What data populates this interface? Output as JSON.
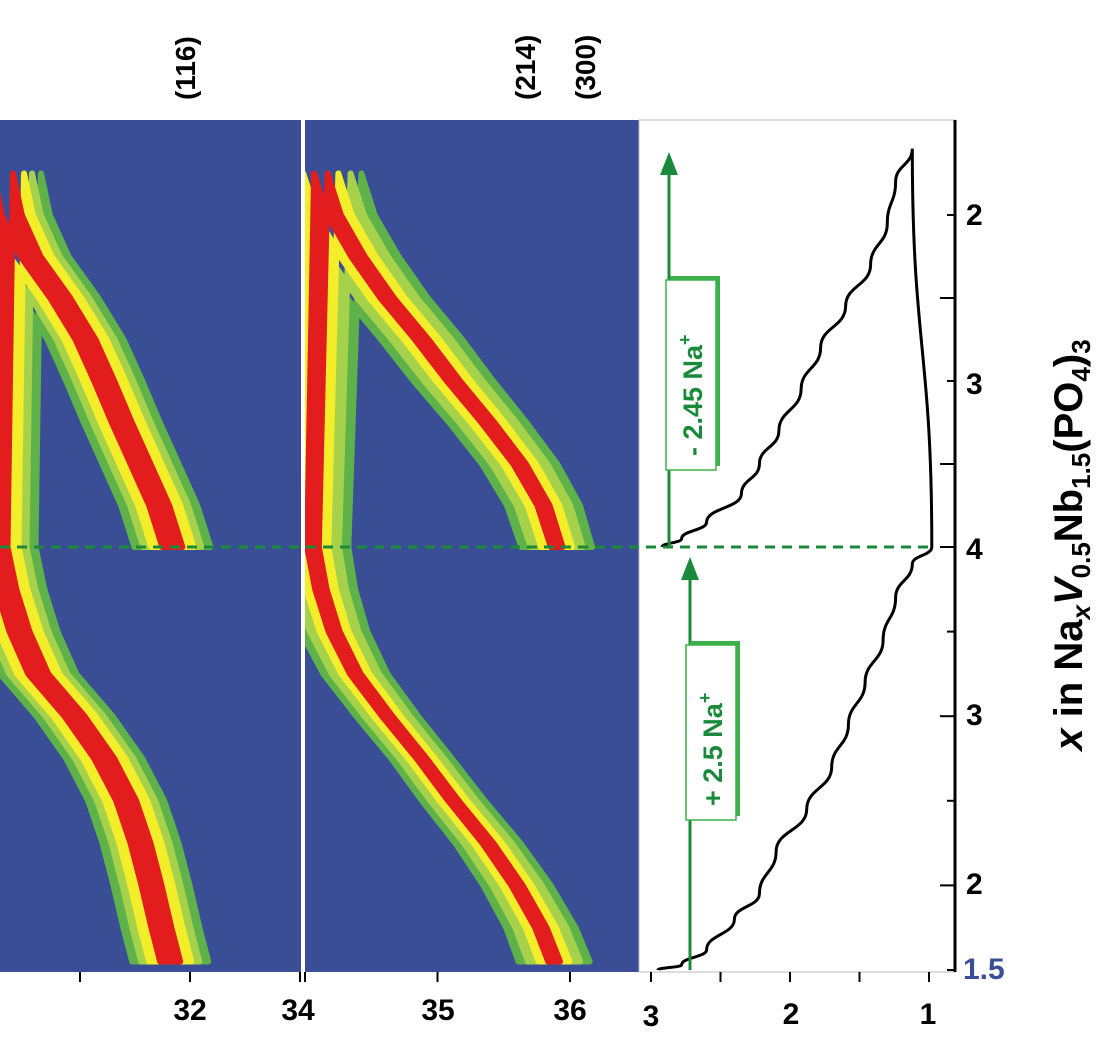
{
  "chart_data": [
    {
      "panel": "xrd-contour-left",
      "type": "heatmap",
      "x_ticks": [
        "32",
        "34"
      ],
      "peak_labels": [
        "(116)"
      ],
      "colors": {
        "background": "#3a4e96",
        "low": "#5fb24a",
        "mid": "#a6d24b",
        "high": "#f4ee2a",
        "max": "#e31d1d"
      },
      "peak_track": {
        "y": [
          1.5,
          1.75,
          2.0,
          2.25,
          2.5,
          2.75,
          3.0,
          3.25,
          3.5,
          3.75,
          4.0,
          3.75,
          3.5,
          3.25,
          3.0,
          2.75,
          2.5,
          2.25,
          2.0,
          1.75,
          1.55
        ],
        "branch": [
          "charge",
          "charge",
          "charge",
          "charge",
          "charge",
          "charge",
          "charge",
          "charge",
          "charge",
          "charge",
          "turn",
          "discharge",
          "discharge",
          "discharge",
          "discharge",
          "discharge",
          "discharge",
          "discharge",
          "discharge",
          "discharge",
          "discharge"
        ],
        "two_theta": [
          31.84,
          31.72,
          31.55,
          31.38,
          31.22,
          31.05,
          30.82,
          30.55,
          30.38,
          30.3,
          30.25,
          30.33,
          30.45,
          30.62,
          30.95,
          31.22,
          31.42,
          31.55,
          31.65,
          31.74,
          31.82
        ]
      }
    },
    {
      "panel": "xrd-contour-right",
      "type": "heatmap",
      "x_ticks": [
        "34",
        "35",
        "36"
      ],
      "peak_labels": [
        "(214)",
        "(300)"
      ],
      "peak_track": {
        "two_theta": [
          35.9,
          35.8,
          35.62,
          35.38,
          35.12,
          34.88,
          34.62,
          34.4,
          34.22,
          34.12,
          34.06,
          34.12,
          34.22,
          34.38,
          34.62,
          34.88,
          35.12,
          35.38,
          35.6,
          35.78,
          35.88
        ]
      }
    },
    {
      "panel": "voltage-profile",
      "type": "line",
      "x_ticks": [
        "3",
        "2",
        "1"
      ],
      "xlim": [
        3.0,
        0.95
      ],
      "points": [
        {
          "v": 2.92,
          "y": 1.5,
          "branch": "charge"
        },
        {
          "v": 2.78,
          "y": 1.55,
          "branch": "charge"
        },
        {
          "v": 2.6,
          "y": 1.65,
          "branch": "charge"
        },
        {
          "v": 2.35,
          "y": 1.82,
          "branch": "charge"
        },
        {
          "v": 2.22,
          "y": 2.0,
          "branch": "charge"
        },
        {
          "v": 2.08,
          "y": 2.2,
          "branch": "charge"
        },
        {
          "v": 1.92,
          "y": 2.45,
          "branch": "charge"
        },
        {
          "v": 1.78,
          "y": 2.7,
          "branch": "charge"
        },
        {
          "v": 1.6,
          "y": 2.95,
          "branch": "charge"
        },
        {
          "v": 1.42,
          "y": 3.2,
          "branch": "charge"
        },
        {
          "v": 1.3,
          "y": 3.45,
          "branch": "charge"
        },
        {
          "v": 1.24,
          "y": 3.7,
          "branch": "charge"
        },
        {
          "v": 1.12,
          "y": 3.9,
          "branch": "charge"
        },
        {
          "v": 0.98,
          "y": 4.0,
          "branch": "turn"
        },
        {
          "v": 1.12,
          "y": 3.9,
          "branch": "discharge"
        },
        {
          "v": 1.24,
          "y": 3.7,
          "branch": "discharge"
        },
        {
          "v": 1.33,
          "y": 3.45,
          "branch": "discharge"
        },
        {
          "v": 1.46,
          "y": 3.2,
          "branch": "discharge"
        },
        {
          "v": 1.58,
          "y": 2.95,
          "branch": "discharge"
        },
        {
          "v": 1.7,
          "y": 2.7,
          "branch": "discharge"
        },
        {
          "v": 1.88,
          "y": 2.45,
          "branch": "discharge"
        },
        {
          "v": 2.1,
          "y": 2.2,
          "branch": "discharge"
        },
        {
          "v": 2.22,
          "y": 1.95,
          "branch": "discharge"
        },
        {
          "v": 2.4,
          "y": 1.8,
          "branch": "discharge"
        },
        {
          "v": 2.6,
          "y": 1.62,
          "branch": "discharge"
        },
        {
          "v": 2.78,
          "y": 1.53,
          "branch": "discharge"
        },
        {
          "v": 2.95,
          "y": 1.5,
          "branch": "discharge"
        }
      ],
      "annotations": [
        "- 2.45 Na",
        "+ 2.5 Na"
      ],
      "annotation_superscript": "+",
      "line_color": "#000000",
      "annotation_color": "#1a8a3a"
    },
    {
      "panel": "composition-axis",
      "type": "line",
      "tick_labels_top": [
        "2",
        "3",
        "4"
      ],
      "tick_labels_bottom": [
        "3",
        "2",
        "1.5"
      ],
      "start_label_color": "#3a4e96",
      "label_parts": {
        "a": "x",
        "b": " in Na",
        "c": "x",
        "d": "V",
        "e": "0.5",
        "f": "Nb",
        "g": "1.5",
        "h": "(PO",
        "i": "4",
        "j": ")",
        "k": "3"
      }
    }
  ]
}
